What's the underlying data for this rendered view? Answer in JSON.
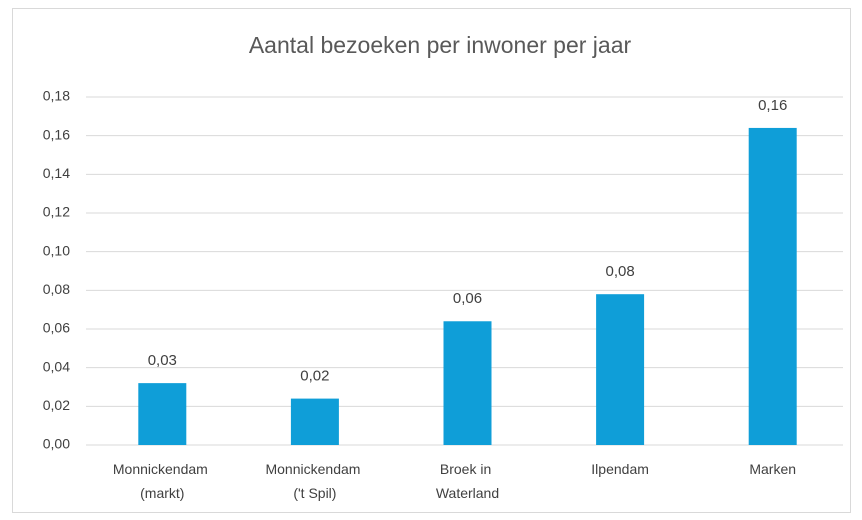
{
  "chart_data": {
    "type": "bar",
    "title": "Aantal bezoeken per inwoner per jaar",
    "categories": [
      "Monnickendam (markt)",
      "Monnickendam ('t Spil)",
      "Broek in Waterland",
      "Ilpendam",
      "Marken"
    ],
    "values": [
      0.032,
      0.024,
      0.064,
      0.078,
      0.164
    ],
    "value_labels": [
      "0,03",
      "0,02",
      "0,06",
      "0,08",
      "0,16"
    ],
    "color": "#0f9ed8",
    "ylim": [
      0,
      0.18
    ],
    "yticks": [
      {
        "value": 0,
        "label": "0,00"
      },
      {
        "value": 0.02,
        "label": "0,02"
      },
      {
        "value": 0.04,
        "label": "0,04"
      },
      {
        "value": 0.06,
        "label": "0,06"
      },
      {
        "value": 0.08,
        "label": "0,08"
      },
      {
        "value": 0.1,
        "label": "0,10"
      },
      {
        "value": 0.12,
        "label": "0,12"
      },
      {
        "value": 0.14,
        "label": "0,14"
      },
      {
        "value": 0.16,
        "label": "0,16"
      },
      {
        "value": 0.18,
        "label": "0,18"
      }
    ],
    "grid": true
  }
}
